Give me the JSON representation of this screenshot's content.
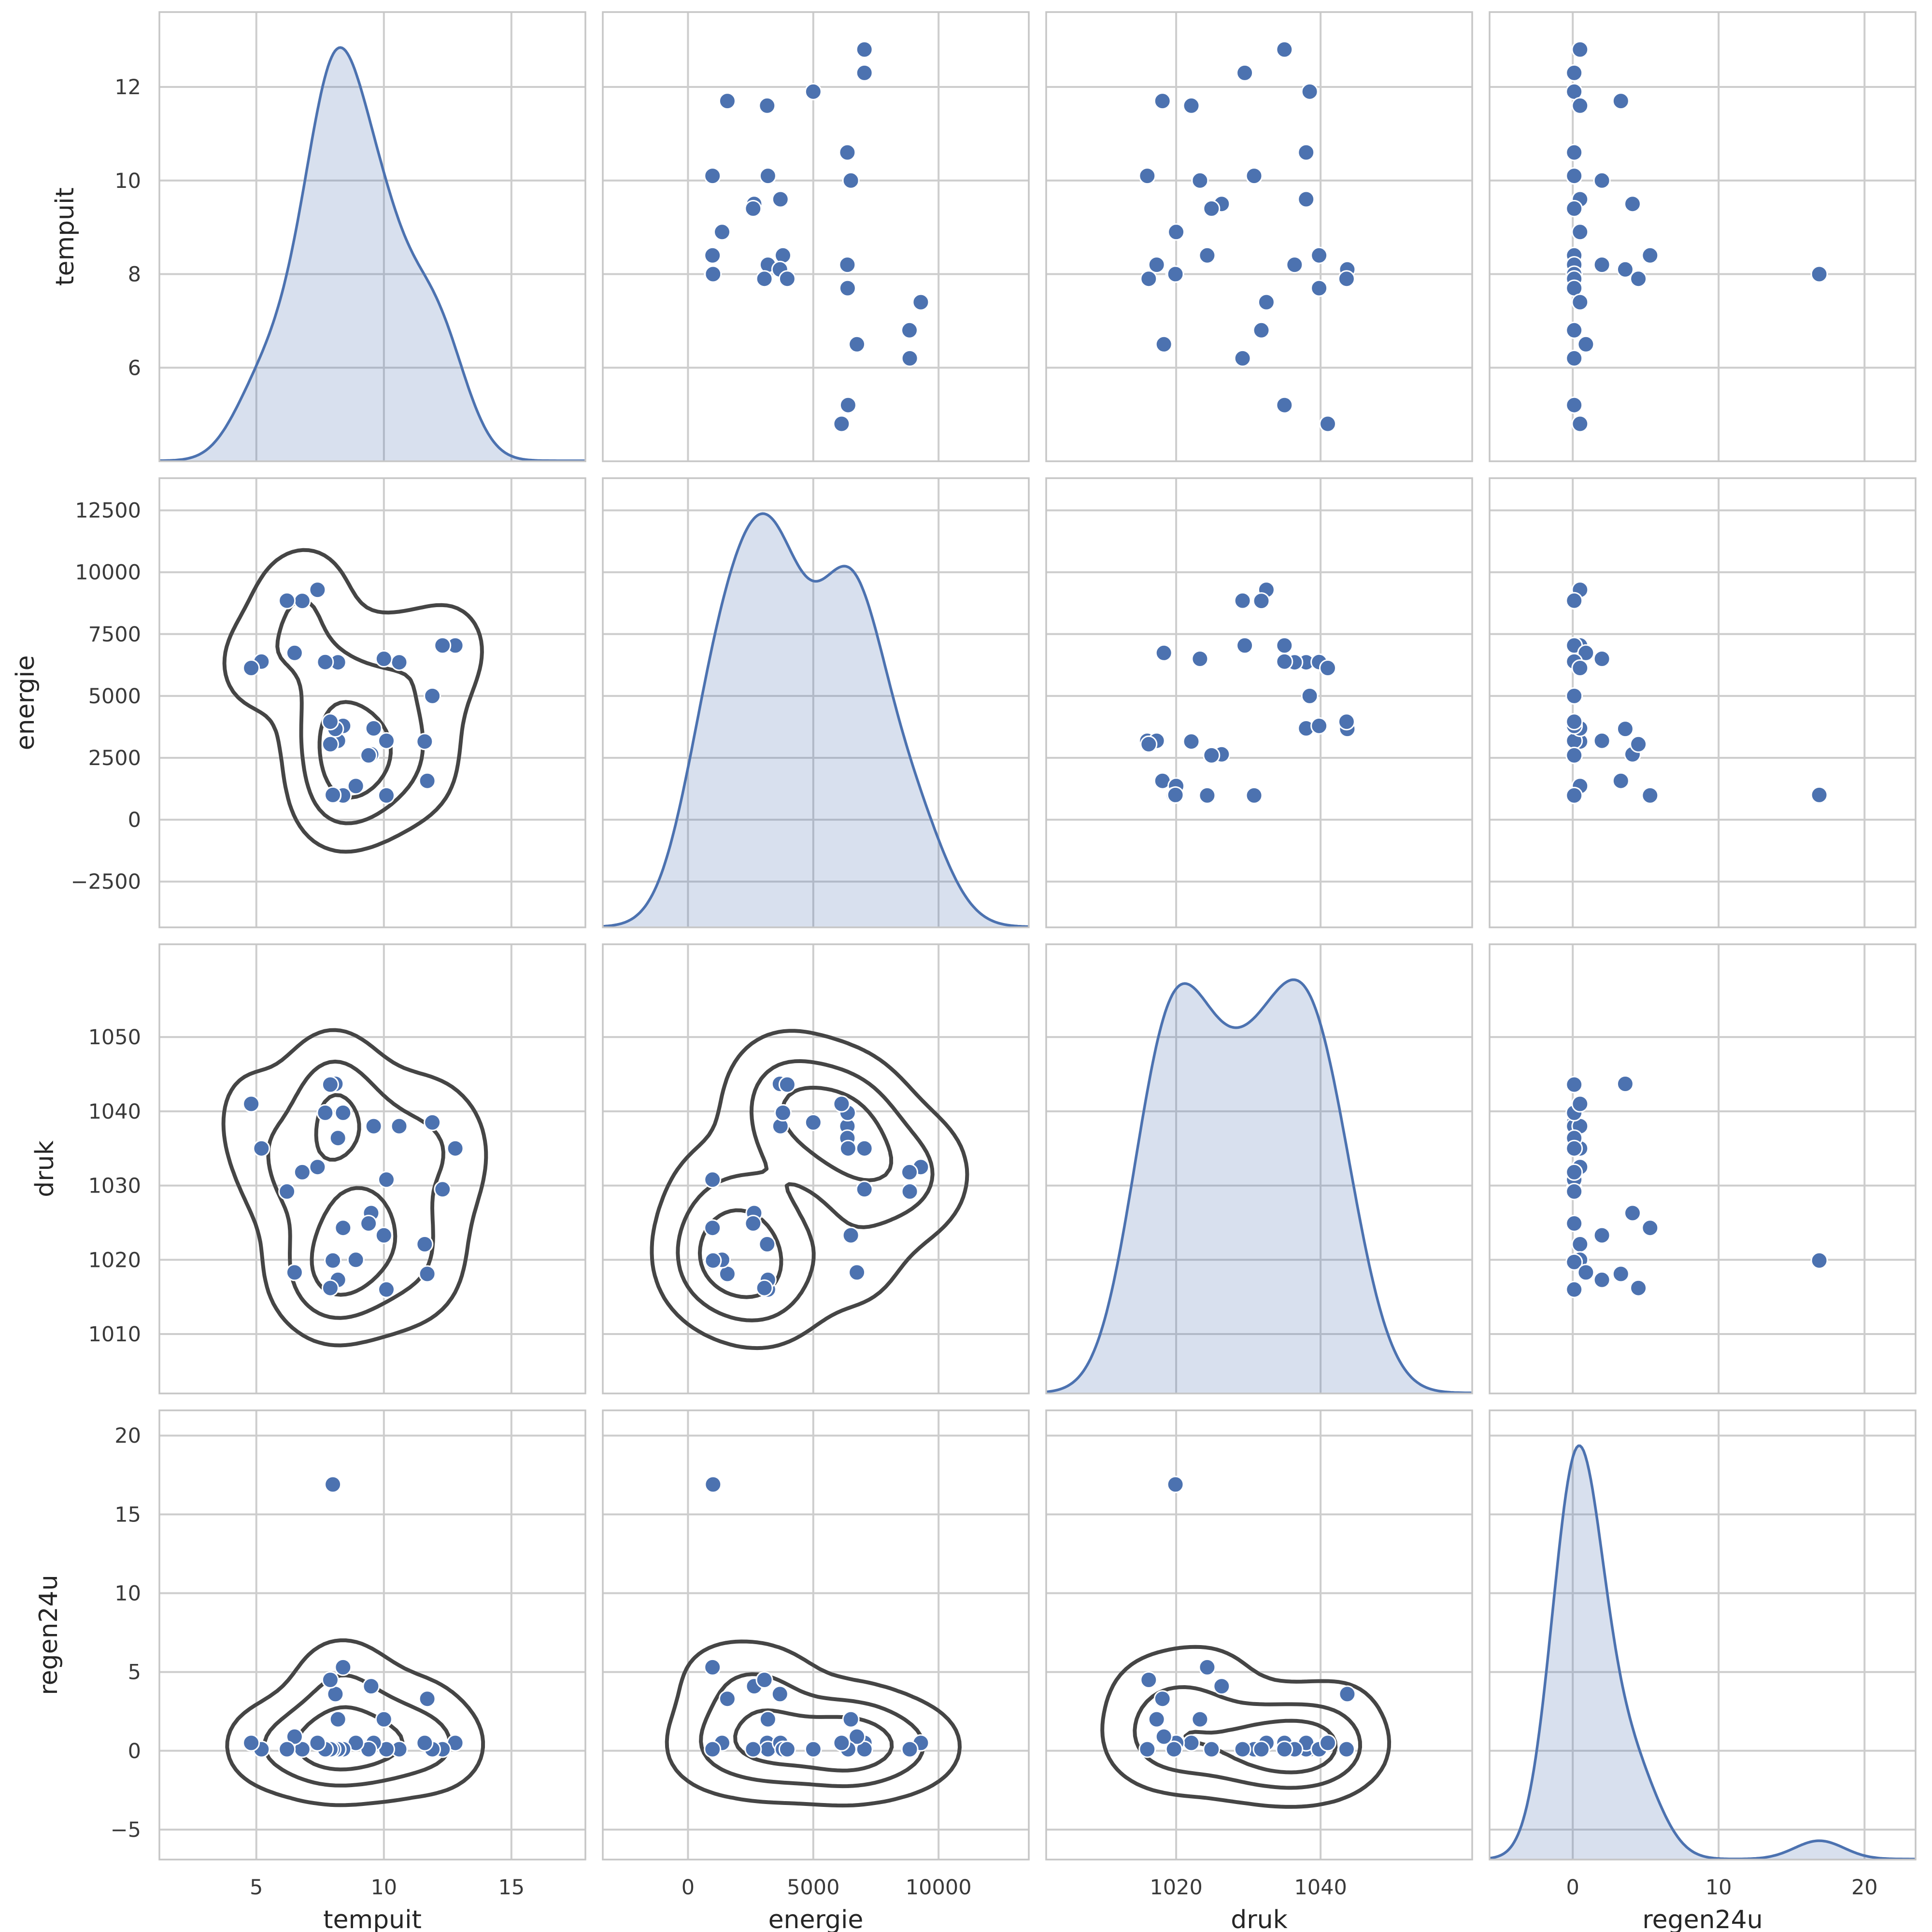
{
  "chart_data": {
    "type": "scatter-matrix",
    "title": "",
    "style": "seaborn pairplot: kde on diagonal, kde contours + scatter in lower triangle, scatter in upper triangle",
    "grid": true,
    "legend": null,
    "n_observations": 29,
    "variables": [
      {
        "name": "tempuit",
        "axis_label": "tempuit",
        "x_range": [
          1.2,
          17.9
        ],
        "y_range": [
          4.0,
          13.6
        ],
        "x_ticks": [
          5,
          10,
          15
        ],
        "x_tick_labels": [
          "5",
          "10",
          "15"
        ],
        "y_ticks": [
          6,
          8,
          10,
          12
        ],
        "y_tick_labels": [
          "6",
          "8",
          "10",
          "12"
        ]
      },
      {
        "name": "energie",
        "axis_label": "energie",
        "x_range": [
          -3400,
          13600
        ],
        "y_range": [
          -4350,
          13800
        ],
        "x_ticks": [
          0,
          5000,
          10000
        ],
        "x_tick_labels": [
          "0",
          "5000",
          "10000"
        ],
        "y_ticks": [
          -2500,
          0,
          2500,
          5000,
          7500,
          10000,
          12500
        ],
        "y_tick_labels": [
          "−2500",
          "0",
          "2500",
          "5000",
          "7500",
          "10000",
          "12500"
        ]
      },
      {
        "name": "druk",
        "axis_label": "druk",
        "x_range": [
          1002,
          1061
        ],
        "y_range": [
          1002,
          1062.5
        ],
        "x_ticks": [
          1020,
          1040
        ],
        "x_tick_labels": [
          "1020",
          "1040"
        ],
        "y_ticks": [
          1010,
          1020,
          1030,
          1040,
          1050
        ],
        "y_tick_labels": [
          "1010",
          "1020",
          "1030",
          "1040",
          "1050"
        ]
      },
      {
        "name": "regen24u",
        "axis_label": "regen24u",
        "x_range": [
          -5.7,
          23.5
        ],
        "y_range": [
          -6.9,
          21.6
        ],
        "x_ticks": [
          0,
          10,
          20
        ],
        "x_tick_labels": [
          "0",
          "10",
          "20"
        ],
        "y_ticks": [
          -5,
          0,
          5,
          10,
          15,
          20
        ],
        "y_tick_labels": [
          "−5",
          "0",
          "5",
          "10",
          "15",
          "20"
        ]
      }
    ],
    "observations": [
      {
        "tempuit": 12.8,
        "energie": 7040,
        "druk": 1035.0,
        "regen24u": 0.5
      },
      {
        "tempuit": 12.3,
        "energie": 7040,
        "druk": 1029.5,
        "regen24u": 0.1
      },
      {
        "tempuit": 11.9,
        "energie": 5000,
        "druk": 1038.5,
        "regen24u": 0.1
      },
      {
        "tempuit": 11.7,
        "energie": 1570,
        "druk": 1018.1,
        "regen24u": 3.3
      },
      {
        "tempuit": 11.6,
        "energie": 3160,
        "druk": 1022.1,
        "regen24u": 0.5
      },
      {
        "tempuit": 10.6,
        "energie": 6360,
        "druk": 1038.0,
        "regen24u": 0.1
      },
      {
        "tempuit": 10.1,
        "energie": 980,
        "druk": 1030.8,
        "regen24u": 0.1
      },
      {
        "tempuit": 10.1,
        "energie": 3190,
        "druk": 1016.0,
        "regen24u": 0.1
      },
      {
        "tempuit": 10.0,
        "energie": 6500,
        "druk": 1023.3,
        "regen24u": 2.0
      },
      {
        "tempuit": 9.6,
        "energie": 3690,
        "druk": 1038.0,
        "regen24u": 0.5
      },
      {
        "tempuit": 9.5,
        "energie": 2640,
        "druk": 1026.3,
        "regen24u": 4.1
      },
      {
        "tempuit": 9.4,
        "energie": 2600,
        "druk": 1024.9,
        "regen24u": 0.1
      },
      {
        "tempuit": 8.9,
        "energie": 1360,
        "druk": 1020.0,
        "regen24u": 0.5
      },
      {
        "tempuit": 8.4,
        "energie": 3790,
        "druk": 1039.8,
        "regen24u": 0.1
      },
      {
        "tempuit": 8.4,
        "energie": 980,
        "druk": 1024.3,
        "regen24u": 5.3
      },
      {
        "tempuit": 8.2,
        "energie": 3190,
        "druk": 1017.3,
        "regen24u": 2.0
      },
      {
        "tempuit": 8.2,
        "energie": 6360,
        "druk": 1036.4,
        "regen24u": 0.1
      },
      {
        "tempuit": 8.1,
        "energie": 3670,
        "druk": 1043.7,
        "regen24u": 3.6
      },
      {
        "tempuit": 8.0,
        "energie": 980,
        "druk": 1019.7,
        "regen24u": 0.1
      },
      {
        "tempuit": 8.0,
        "energie": 1000,
        "druk": 1019.9,
        "regen24u": 16.9
      },
      {
        "tempuit": 7.9,
        "energie": 3050,
        "druk": 1016.2,
        "regen24u": 4.5
      },
      {
        "tempuit": 7.9,
        "energie": 3960,
        "druk": 1043.6,
        "regen24u": 0.1
      },
      {
        "tempuit": 7.7,
        "energie": 6370,
        "druk": 1039.8,
        "regen24u": 0.1
      },
      {
        "tempuit": 7.4,
        "energie": 9290,
        "druk": 1032.5,
        "regen24u": 0.5
      },
      {
        "tempuit": 6.8,
        "energie": 8840,
        "druk": 1031.8,
        "regen24u": 0.1
      },
      {
        "tempuit": 6.5,
        "energie": 6740,
        "druk": 1018.3,
        "regen24u": 0.9
      },
      {
        "tempuit": 6.2,
        "energie": 8850,
        "druk": 1029.2,
        "regen24u": 0.1
      },
      {
        "tempuit": 5.2,
        "energie": 6390,
        "druk": 1035.0,
        "regen24u": 0.1
      },
      {
        "tempuit": 4.8,
        "energie": 6130,
        "druk": 1041.0,
        "regen24u": 0.5
      }
    ],
    "colors": {
      "point": "#4C72B0",
      "point_edge": "#ffffff",
      "kde_line": "#4C72B0",
      "kde_fill": "#4C72B0",
      "kde_fill_opacity": 0.22,
      "contour": "#454545",
      "grid_line": "#cdcdcd",
      "spine": "#c6c6c6",
      "tick_text": "#3a3a3a",
      "label_text": "#262626",
      "background": "#ffffff"
    },
    "contour_level_fractions": [
      0.14,
      0.4,
      0.7
    ]
  }
}
